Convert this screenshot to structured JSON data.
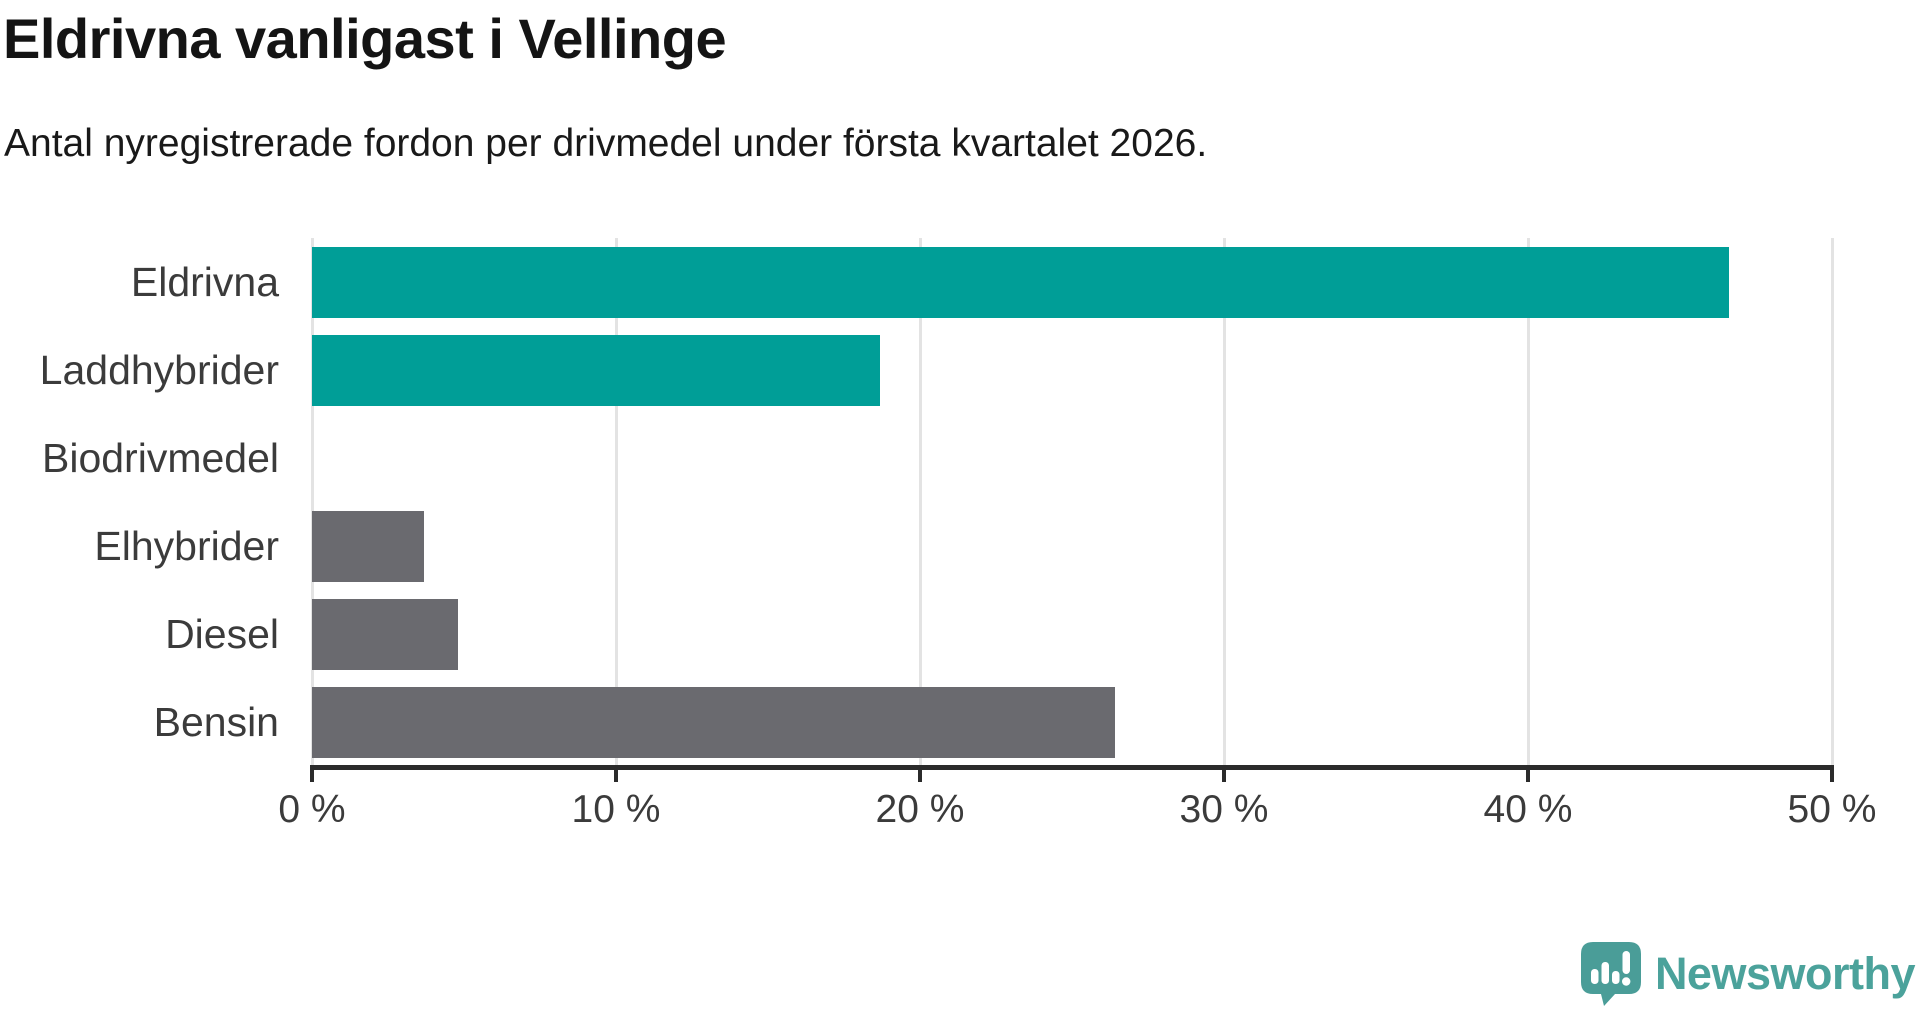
{
  "title": "Eldrivna vanligast i Vellinge",
  "subtitle": "Antal nyregistrerade fordon per drivmedel under första kvartalet 2026.",
  "chart_data": {
    "type": "bar",
    "orientation": "horizontal",
    "title": "Eldrivna vanligast i Vellinge",
    "subtitle": "Antal nyregistrerade fordon per drivmedel under första kvartalet 2026.",
    "categories": [
      "Eldrivna",
      "Laddhybrider",
      "Biodrivmedel",
      "Elhybrider",
      "Diesel",
      "Bensin"
    ],
    "values": [
      46.6,
      18.7,
      0,
      3.7,
      4.8,
      26.4
    ],
    "unit": "%",
    "xlim": [
      0,
      50
    ],
    "x_ticks": [
      0,
      10,
      20,
      30,
      40,
      50
    ],
    "x_tick_labels": [
      "0 %",
      "10 %",
      "20 %",
      "30 %",
      "40 %",
      "50 %"
    ],
    "bar_colors": [
      "#009e97",
      "#009e97",
      "#6a6a6f",
      "#6a6a6f",
      "#6a6a6f",
      "#6a6a6f"
    ],
    "highlight_color": "#009e97",
    "default_color": "#6a6a6f",
    "grid": true,
    "gridline_color": "#e3e3e3",
    "axis_color": "#2b2b2b"
  },
  "branding": {
    "logo_text": "Newsworthy",
    "logo_text_color": "#4ba29b",
    "logo_icon_color": "#4a9d98",
    "logo_icon": "newsworthy-speech-bubble-chart-icon"
  }
}
